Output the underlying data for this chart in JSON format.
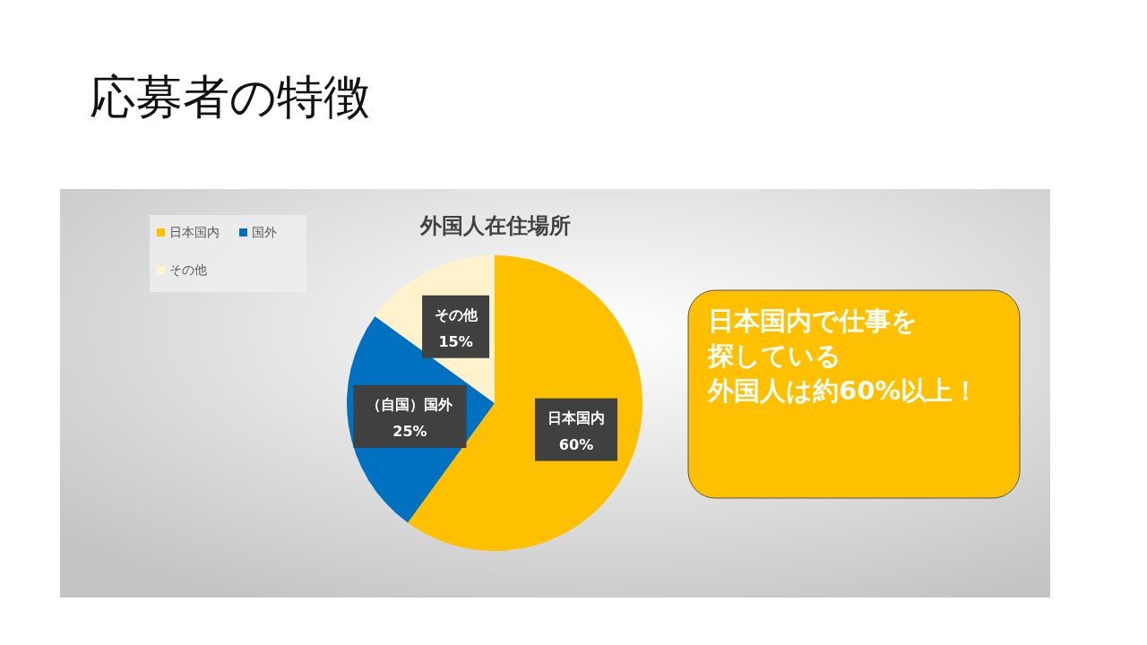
{
  "chart_data": {
    "type": "pie",
    "title": "応募者の特徴",
    "subtitle": "外国人在住場所",
    "categories": [
      "日本国内",
      "国外",
      "その他"
    ],
    "values": [
      60,
      25,
      15
    ],
    "colors": [
      "#ffc000",
      "#0070c0",
      "#fff2cc"
    ],
    "value_labels": [
      "日本国内\n60%",
      "（自国）国外\n25%",
      "その他\n15%"
    ],
    "legend": "top left",
    "annotations": [
      "日本国内で仕事を",
      "探している",
      "外国人は約60%以上！"
    ]
  }
}
